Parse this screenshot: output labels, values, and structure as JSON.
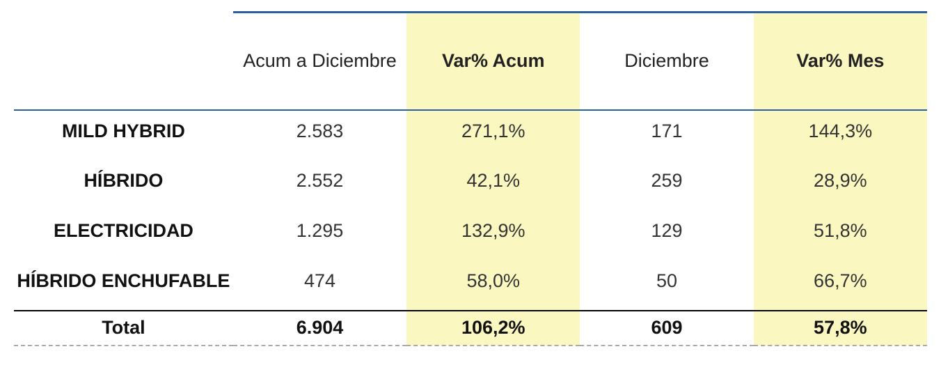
{
  "table": {
    "type": "table",
    "columns": [
      {
        "key": "label",
        "header": "",
        "bold": false,
        "highlight": false
      },
      {
        "key": "acum",
        "header": "Acum a Diciembre",
        "bold": false,
        "highlight": false
      },
      {
        "key": "var_acum",
        "header": "Var% Acum",
        "bold": true,
        "highlight": true
      },
      {
        "key": "dic",
        "header": "Diciembre",
        "bold": false,
        "highlight": false
      },
      {
        "key": "var_mes",
        "header": "Var% Mes",
        "bold": true,
        "highlight": true
      }
    ],
    "rows": [
      {
        "label": "MILD HYBRID",
        "acum": "2.583",
        "var_acum": "271,1%",
        "dic": "171",
        "var_mes": "144,3%"
      },
      {
        "label": "HÍBRIDO",
        "acum": "2.552",
        "var_acum": "42,1%",
        "dic": "259",
        "var_mes": "28,9%"
      },
      {
        "label": "ELECTRICIDAD",
        "acum": "1.295",
        "var_acum": "132,9%",
        "dic": "129",
        "var_mes": "51,8%"
      },
      {
        "label": "HÍBRIDO ENCHUFABLE",
        "acum": "474",
        "var_acum": "58,0%",
        "dic": "50",
        "var_mes": "66,7%"
      }
    ],
    "footer": {
      "label": "Total",
      "acum": "6.904",
      "var_acum": "106,2%",
      "dic": "609",
      "var_mes": "57,8%"
    },
    "style": {
      "highlight_bg": "#fbf7c0",
      "rule_color": "#2a5f9e",
      "footer_top_border": "#000000",
      "footer_bottom_border": "#a9a9a9",
      "header_fontsize_pt": 20,
      "body_fontsize_pt": 20,
      "text_color": "#222222",
      "label_color": "#111111",
      "background_color": "#ffffff"
    }
  }
}
